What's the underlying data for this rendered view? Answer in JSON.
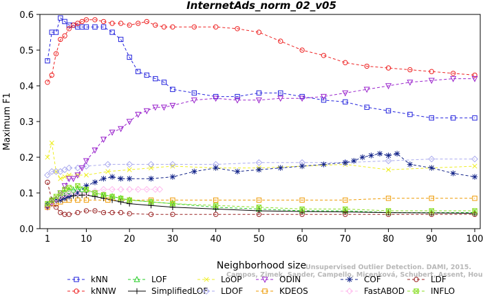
{
  "chart_data": {
    "type": "line",
    "title": "InternetAds_norm_02_v05",
    "xlabel": "Neighborhood size",
    "ylabel": "Maximum F1",
    "xlim": [
      1,
      100
    ],
    "ylim": [
      0,
      0.6
    ],
    "xticks": [
      1,
      10,
      20,
      30,
      40,
      50,
      60,
      70,
      80,
      90,
      100
    ],
    "yticks": [
      0.0,
      0.1,
      0.2,
      0.3,
      0.4,
      0.5,
      0.6
    ],
    "grid": false,
    "legend_position": "bottom",
    "watermark": [
      "Unsupervised Outlier Detection. DAMI, 2015.",
      "Campos, Zimek, Sander, Campello, Micenková, Schubert, Assent, Houle"
    ],
    "series": [
      {
        "name": "kNN",
        "color": "#2222dd",
        "dash": "4,3",
        "marker": "square",
        "x": [
          1,
          2,
          3,
          4,
          5,
          6,
          7,
          8,
          9,
          10,
          12,
          14,
          16,
          18,
          20,
          22,
          24,
          26,
          28,
          30,
          35,
          40,
          45,
          50,
          55,
          60,
          65,
          70,
          75,
          80,
          85,
          90,
          95,
          100
        ],
        "y": [
          0.47,
          0.55,
          0.55,
          0.59,
          0.58,
          0.57,
          0.57,
          0.565,
          0.565,
          0.565,
          0.565,
          0.565,
          0.55,
          0.53,
          0.48,
          0.44,
          0.43,
          0.42,
          0.41,
          0.39,
          0.38,
          0.37,
          0.37,
          0.38,
          0.38,
          0.37,
          0.36,
          0.355,
          0.34,
          0.33,
          0.32,
          0.31,
          0.31,
          0.31
        ]
      },
      {
        "name": "kNNW",
        "color": "#ee2222",
        "dash": "4,3",
        "marker": "circle",
        "x": [
          1,
          2,
          3,
          4,
          5,
          6,
          7,
          8,
          9,
          10,
          12,
          14,
          16,
          18,
          20,
          22,
          24,
          26,
          28,
          30,
          35,
          40,
          45,
          50,
          55,
          60,
          65,
          70,
          75,
          80,
          85,
          90,
          95,
          100
        ],
        "y": [
          0.41,
          0.43,
          0.49,
          0.53,
          0.54,
          0.56,
          0.57,
          0.575,
          0.58,
          0.585,
          0.585,
          0.58,
          0.575,
          0.575,
          0.57,
          0.575,
          0.58,
          0.57,
          0.565,
          0.565,
          0.565,
          0.565,
          0.56,
          0.55,
          0.525,
          0.5,
          0.485,
          0.465,
          0.455,
          0.45,
          0.445,
          0.44,
          0.435,
          0.43
        ]
      },
      {
        "name": "LOF",
        "color": "#22cc22",
        "dash": "4,3",
        "marker": "triangle",
        "x": [
          1,
          2,
          3,
          4,
          5,
          6,
          7,
          8,
          9,
          10,
          12,
          14,
          16,
          18,
          20,
          25,
          30,
          40,
          50,
          60,
          70,
          80,
          90,
          100
        ],
        "y": [
          0.07,
          0.08,
          0.085,
          0.09,
          0.1,
          0.105,
          0.108,
          0.11,
          0.11,
          0.108,
          0.1,
          0.095,
          0.09,
          0.085,
          0.08,
          0.075,
          0.07,
          0.06,
          0.055,
          0.05,
          0.05,
          0.045,
          0.045,
          0.045
        ]
      },
      {
        "name": "SimplifiedLOF",
        "color": "#000000",
        "dash": "",
        "marker": "plus",
        "x": [
          1,
          2,
          3,
          4,
          5,
          6,
          7,
          8,
          9,
          10,
          12,
          14,
          16,
          18,
          20,
          25,
          30,
          40,
          50,
          60,
          70,
          80,
          90,
          100
        ],
        "y": [
          0.06,
          0.07,
          0.08,
          0.085,
          0.09,
          0.09,
          0.092,
          0.093,
          0.094,
          0.094,
          0.09,
          0.085,
          0.08,
          0.075,
          0.07,
          0.065,
          0.06,
          0.055,
          0.05,
          0.048,
          0.047,
          0.045,
          0.044,
          0.043
        ]
      },
      {
        "name": "LoOP",
        "color": "#eeee22",
        "dash": "4,3",
        "marker": "x",
        "x": [
          1,
          2,
          3,
          4,
          5,
          6,
          8,
          10,
          15,
          20,
          25,
          30,
          40,
          50,
          60,
          70,
          80,
          90,
          100
        ],
        "y": [
          0.2,
          0.24,
          0.16,
          0.14,
          0.145,
          0.15,
          0.15,
          0.15,
          0.16,
          0.165,
          0.17,
          0.175,
          0.17,
          0.17,
          0.175,
          0.18,
          0.165,
          0.17,
          0.175
        ]
      },
      {
        "name": "LDOF",
        "color": "#aaaaee",
        "dash": "4,3",
        "marker": "diamond",
        "x": [
          1,
          2,
          3,
          4,
          5,
          6,
          8,
          10,
          15,
          20,
          25,
          30,
          40,
          50,
          60,
          70,
          80,
          90,
          100
        ],
        "y": [
          0.15,
          0.16,
          0.16,
          0.16,
          0.165,
          0.17,
          0.17,
          0.175,
          0.18,
          0.18,
          0.18,
          0.18,
          0.18,
          0.185,
          0.185,
          0.185,
          0.19,
          0.195,
          0.195
        ]
      },
      {
        "name": "ODIN",
        "color": "#9922cc",
        "dash": "4,3",
        "marker": "triangle-down",
        "x": [
          1,
          2,
          3,
          4,
          5,
          6,
          7,
          8,
          9,
          10,
          12,
          14,
          16,
          18,
          20,
          22,
          24,
          26,
          28,
          30,
          35,
          40,
          45,
          50,
          55,
          60,
          65,
          70,
          75,
          80,
          85,
          90,
          95,
          100
        ],
        "y": [
          0.06,
          0.07,
          0.08,
          0.1,
          0.12,
          0.14,
          0.14,
          0.15,
          0.17,
          0.19,
          0.22,
          0.25,
          0.27,
          0.28,
          0.3,
          0.32,
          0.33,
          0.34,
          0.34,
          0.345,
          0.36,
          0.365,
          0.36,
          0.36,
          0.365,
          0.365,
          0.37,
          0.38,
          0.39,
          0.4,
          0.41,
          0.415,
          0.42,
          0.42
        ]
      },
      {
        "name": "KDEOS",
        "color": "#ee9900",
        "dash": "4,3",
        "marker": "square",
        "x": [
          1,
          2,
          3,
          4,
          5,
          6,
          8,
          10,
          15,
          20,
          25,
          30,
          40,
          50,
          60,
          70,
          80,
          90,
          100
        ],
        "y": [
          0.06,
          0.07,
          0.07,
          0.075,
          0.08,
          0.08,
          0.08,
          0.08,
          0.08,
          0.08,
          0.08,
          0.08,
          0.08,
          0.08,
          0.08,
          0.08,
          0.085,
          0.085,
          0.085
        ]
      },
      {
        "name": "COF",
        "color": "#112288",
        "dash": "4,3",
        "marker": "star",
        "x": [
          1,
          2,
          3,
          4,
          5,
          6,
          8,
          10,
          12,
          14,
          16,
          18,
          20,
          25,
          30,
          35,
          40,
          45,
          50,
          55,
          60,
          65,
          70,
          72,
          74,
          76,
          78,
          80,
          82,
          85,
          90,
          95,
          100
        ],
        "y": [
          0.07,
          0.08,
          0.08,
          0.08,
          0.085,
          0.09,
          0.1,
          0.12,
          0.13,
          0.14,
          0.145,
          0.14,
          0.14,
          0.14,
          0.145,
          0.16,
          0.17,
          0.16,
          0.165,
          0.17,
          0.175,
          0.18,
          0.185,
          0.19,
          0.2,
          0.205,
          0.21,
          0.205,
          0.21,
          0.18,
          0.17,
          0.155,
          0.145
        ]
      },
      {
        "name": "FastABOD",
        "color": "#ffbbee",
        "dash": "4,3",
        "marker": "diamond",
        "x": [
          1,
          2,
          3,
          4,
          5,
          6,
          8,
          10,
          12,
          14,
          16,
          18,
          20,
          22,
          24,
          26,
          27
        ],
        "y": [
          0.07,
          0.075,
          0.085,
          0.09,
          0.095,
          0.1,
          0.1,
          0.1,
          0.105,
          0.11,
          0.11,
          0.11,
          0.11,
          0.11,
          0.11,
          0.11,
          0.11
        ]
      },
      {
        "name": "LDF",
        "color": "#992222",
        "dash": "4,3",
        "marker": "circle",
        "x": [
          1,
          2,
          3,
          4,
          5,
          6,
          8,
          10,
          12,
          14,
          16,
          18,
          20,
          25,
          30,
          40,
          50,
          60,
          70,
          80,
          90,
          100
        ],
        "y": [
          0.13,
          0.08,
          0.06,
          0.045,
          0.04,
          0.04,
          0.045,
          0.05,
          0.05,
          0.045,
          0.045,
          0.045,
          0.042,
          0.04,
          0.04,
          0.04,
          0.04,
          0.04,
          0.04,
          0.04,
          0.04,
          0.04
        ]
      },
      {
        "name": "INFLO",
        "color": "#88dd22",
        "dash": "4,3",
        "marker": "square-x",
        "x": [
          1,
          2,
          3,
          4,
          5,
          6,
          8,
          10,
          12,
          14,
          16,
          18,
          20,
          25,
          30,
          40,
          50,
          60,
          70,
          80,
          90,
          100
        ],
        "y": [
          0.07,
          0.08,
          0.09,
          0.1,
          0.11,
          0.115,
          0.12,
          0.11,
          0.1,
          0.095,
          0.09,
          0.085,
          0.08,
          0.075,
          0.07,
          0.065,
          0.06,
          0.055,
          0.055,
          0.05,
          0.05,
          0.05
        ]
      }
    ]
  }
}
